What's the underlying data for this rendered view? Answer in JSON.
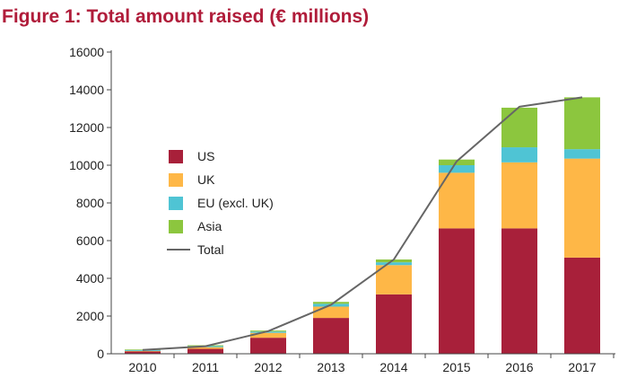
{
  "chart_data": {
    "type": "bar",
    "title": "Figure 1:  Total amount raised (€ millions)",
    "categories": [
      "2010",
      "2011",
      "2012",
      "2013",
      "2014",
      "2015",
      "2016",
      "2017"
    ],
    "stacked": true,
    "series": [
      {
        "name": "US",
        "type": "bar",
        "color": "#a8203a",
        "values": [
          120,
          260,
          850,
          1900,
          3150,
          6650,
          6650,
          5100
        ]
      },
      {
        "name": "UK",
        "type": "bar",
        "color": "#feb747",
        "values": [
          30,
          90,
          260,
          600,
          1550,
          2950,
          3500,
          5250
        ]
      },
      {
        "name": "EU (excl. UK)",
        "type": "bar",
        "color": "#4fc4d4",
        "values": [
          50,
          60,
          70,
          150,
          150,
          400,
          800,
          500
        ]
      },
      {
        "name": "Asia",
        "type": "bar",
        "color": "#8cc63e",
        "values": [
          30,
          40,
          50,
          100,
          150,
          300,
          2100,
          2750
        ]
      },
      {
        "name": "Total",
        "type": "line",
        "color": "#666666",
        "values": [
          200,
          400,
          1200,
          2600,
          5000,
          10200,
          13100,
          13600
        ]
      }
    ],
    "yticks": [
      0,
      2000,
      4000,
      6000,
      8000,
      10000,
      12000,
      14000,
      16000
    ],
    "ylim": [
      0,
      16000
    ],
    "grid": false,
    "legend_position": "left-center"
  }
}
